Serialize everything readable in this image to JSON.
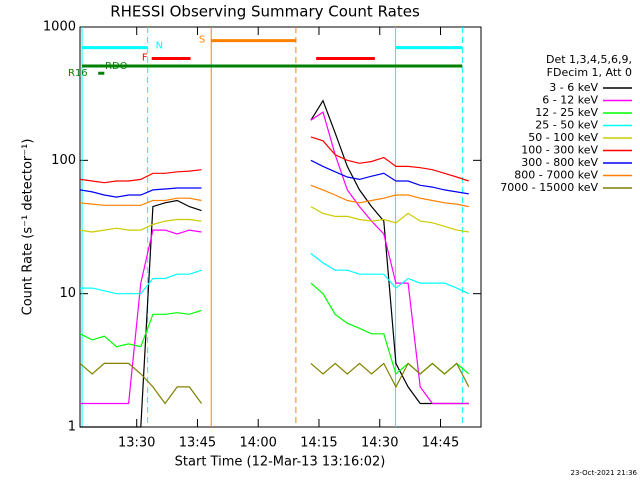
{
  "chart_data": {
    "type": "line",
    "title": "RHESSI Observing Summary Count Rates",
    "xlabel": "Start Time (12-Mar-13 13:16:02)",
    "ylabel": "Count Rate (s⁻¹ detector⁻¹)",
    "legend_header": [
      "Det 1,3,4,5,6,9,",
      "FDecim 1, Att 0"
    ],
    "footer": "23-Oct-2021 21:36",
    "log_y": true,
    "ylim": [
      1,
      1000
    ],
    "yticks": [
      1,
      10,
      100,
      1000
    ],
    "xlim": [
      16,
      115
    ],
    "xticks": [
      {
        "value": 30,
        "label": "13:30"
      },
      {
        "value": 45,
        "label": "13:45"
      },
      {
        "value": 60,
        "label": "14:00"
      },
      {
        "value": 75,
        "label": "14:15"
      },
      {
        "value": 90,
        "label": "14:30"
      },
      {
        "value": 105,
        "label": "14:45"
      }
    ],
    "x": [
      16,
      19,
      22,
      25,
      28,
      31,
      34,
      37,
      40,
      43,
      46,
      49,
      52,
      55,
      58,
      61,
      64,
      67,
      70,
      73,
      76,
      79,
      82,
      85,
      88,
      91,
      94,
      97,
      100,
      103,
      106,
      109,
      112
    ],
    "series": [
      {
        "name": "3 - 6 keV",
        "color": "#000000",
        "values": [
          1,
          1,
          1,
          1,
          1,
          1,
          45,
          48,
          50,
          45,
          42,
          null,
          null,
          null,
          null,
          null,
          null,
          null,
          null,
          200,
          280,
          160,
          90,
          60,
          45,
          35,
          3,
          2,
          1.5,
          1.5,
          1.5,
          1.5,
          1.5
        ]
      },
      {
        "name": "6 - 12 keV",
        "color": "#ff00ff",
        "values": [
          1.5,
          1.5,
          1.5,
          1.5,
          1.5,
          12,
          30,
          30,
          28,
          30,
          29,
          null,
          null,
          null,
          null,
          null,
          null,
          null,
          null,
          200,
          230,
          110,
          60,
          45,
          35,
          28,
          12,
          12,
          2,
          1.5,
          1.5,
          1.5,
          1.5
        ]
      },
      {
        "name": "12 - 25 keV",
        "color": "#00ff00",
        "values": [
          5,
          4.5,
          4.8,
          4,
          4.2,
          4,
          7,
          7,
          7.2,
          7,
          7.5,
          null,
          null,
          null,
          null,
          null,
          null,
          null,
          null,
          12,
          10,
          7,
          6,
          5.5,
          5,
          5,
          2.5,
          3,
          2.5,
          3,
          2.5,
          3,
          2.5
        ]
      },
      {
        "name": "25 - 50 keV",
        "color": "#00ffff",
        "values": [
          11,
          11,
          10.5,
          10,
          10,
          10,
          13,
          13,
          14,
          14,
          15,
          null,
          null,
          null,
          null,
          null,
          null,
          null,
          null,
          20,
          17,
          15,
          15,
          14,
          14,
          14,
          11,
          13,
          12,
          12,
          12,
          11,
          10
        ]
      },
      {
        "name": "50 - 100 keV",
        "color": "#cccc00",
        "values": [
          30,
          29,
          30,
          31,
          30,
          30,
          33,
          35,
          36,
          36,
          35,
          null,
          null,
          null,
          null,
          null,
          null,
          null,
          null,
          45,
          40,
          38,
          38,
          36,
          35,
          36,
          34,
          40,
          35,
          34,
          32,
          30,
          29
        ]
      },
      {
        "name": "100 - 300 keV",
        "color": "#ff0000",
        "values": [
          72,
          70,
          68,
          70,
          70,
          72,
          80,
          80,
          82,
          83,
          85,
          null,
          null,
          null,
          null,
          null,
          null,
          null,
          null,
          150,
          140,
          110,
          100,
          95,
          98,
          105,
          90,
          90,
          88,
          85,
          80,
          75,
          70
        ]
      },
      {
        "name": "300 - 800 keV",
        "color": "#0000ff",
        "values": [
          60,
          58,
          55,
          53,
          55,
          55,
          60,
          61,
          62,
          62,
          62,
          null,
          null,
          null,
          null,
          null,
          null,
          null,
          null,
          100,
          90,
          82,
          75,
          72,
          76,
          80,
          70,
          70,
          65,
          63,
          60,
          58,
          56
        ]
      },
      {
        "name": "800 - 7000 keV",
        "color": "#ff8000",
        "values": [
          48,
          47,
          46,
          46,
          46,
          46,
          50,
          50,
          52,
          52,
          50,
          null,
          null,
          null,
          null,
          null,
          null,
          null,
          null,
          65,
          60,
          55,
          50,
          48,
          50,
          52,
          55,
          55,
          52,
          50,
          48,
          47,
          45
        ]
      },
      {
        "name": "7000 - 15000 keV",
        "color": "#808000",
        "values": [
          3,
          2.5,
          3,
          3,
          3,
          2.5,
          2,
          1.5,
          2,
          2,
          1.5,
          null,
          null,
          null,
          null,
          null,
          null,
          null,
          null,
          3,
          2.5,
          3,
          2.5,
          3,
          2.5,
          3,
          2,
          3,
          2.5,
          3,
          2.5,
          3,
          2
        ]
      }
    ],
    "flags": [
      {
        "label": "N",
        "color": "#00ffff",
        "level": 700,
        "vlines": true,
        "segments": [
          [
            16.5,
            32.7
          ],
          [
            93.9,
            110.4
          ]
        ]
      },
      {
        "label": "F",
        "color": "#ff0000",
        "level": 580,
        "segments": [
          [
            33.7,
            43.3
          ],
          [
            74.3,
            88.8
          ]
        ]
      },
      {
        "label": "S",
        "color": "#ff8000",
        "level": 790,
        "vlines": true,
        "segments": [
          [
            48.4,
            69.3
          ]
        ]
      },
      {
        "label": "RDO",
        "color": "#008000",
        "level": 510,
        "segments": [
          [
            16.5,
            110.4
          ]
        ]
      },
      {
        "label": "R16",
        "color": "#008000",
        "level": 450,
        "segments": [
          [
            20.5,
            22
          ]
        ]
      }
    ]
  }
}
